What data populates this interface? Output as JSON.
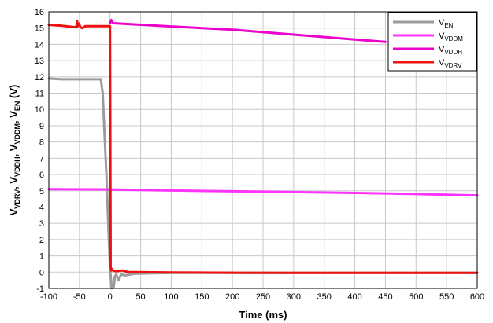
{
  "chart_data": {
    "type": "line",
    "xlabel": "Time (ms)",
    "ylabel": {
      "parts": [
        {
          "t": "V",
          "sub": false
        },
        {
          "t": "VDRV",
          "sub": true
        },
        {
          "t": ", V",
          "sub": false
        },
        {
          "t": "VDDH",
          "sub": true
        },
        {
          "t": ", V",
          "sub": false
        },
        {
          "t": "VDDM",
          "sub": true
        },
        {
          "t": ", V",
          "sub": false
        },
        {
          "t": "EN",
          "sub": true
        },
        {
          "t": " (V)",
          "sub": false
        }
      ]
    },
    "xlim": [
      -100,
      600
    ],
    "ylim": [
      -1,
      16
    ],
    "xticks": [
      -100,
      -50,
      0,
      50,
      100,
      150,
      200,
      250,
      300,
      350,
      400,
      450,
      500,
      550,
      600
    ],
    "yticks": [
      -1,
      0,
      1,
      2,
      3,
      4,
      5,
      6,
      7,
      8,
      9,
      10,
      11,
      12,
      13,
      14,
      15,
      16
    ],
    "grid": true,
    "legend_position": "top-right",
    "series": [
      {
        "name": "EN",
        "prefix": "V",
        "color": "#9b9b9b",
        "x": [
          -100,
          -80,
          -50,
          -20,
          -15,
          -12,
          -9,
          -6,
          -3,
          0,
          3,
          6,
          8,
          10,
          14,
          18,
          25,
          40,
          100,
          300,
          600
        ],
        "y": [
          11.9,
          11.85,
          11.85,
          11.85,
          11.85,
          11.0,
          8.5,
          6.0,
          3.0,
          0.2,
          -1.0,
          -0.9,
          -0.25,
          -0.15,
          -0.5,
          -0.15,
          -0.2,
          -0.1,
          -0.05,
          -0.05,
          -0.05
        ]
      },
      {
        "name": "VDDM",
        "prefix": "V",
        "color": "#ff33ff",
        "x": [
          -100,
          0,
          100,
          200,
          300,
          400,
          500,
          600
        ],
        "y": [
          5.1,
          5.08,
          5.02,
          4.97,
          4.92,
          4.87,
          4.8,
          4.72
        ]
      },
      {
        "name": "VDDH",
        "prefix": "V",
        "color": "#ee00cc",
        "x": [
          0,
          2,
          5,
          100,
          200,
          300,
          400,
          450
        ],
        "y": [
          15.3,
          15.5,
          15.3,
          15.1,
          14.9,
          14.6,
          14.3,
          14.15
        ]
      },
      {
        "name": "VDRV",
        "prefix": "V",
        "color": "#ee1111",
        "x": [
          -100,
          -80,
          -55,
          -54,
          -53,
          -52,
          -50,
          -48,
          -45,
          -40,
          -20,
          -5,
          0,
          1,
          2,
          3,
          5,
          10,
          20,
          30,
          40,
          100,
          200,
          300,
          400,
          500,
          600
        ],
        "y": [
          15.2,
          15.15,
          15.05,
          15.45,
          15.1,
          15.3,
          15.2,
          15.05,
          15.0,
          15.12,
          15.12,
          15.12,
          15.12,
          0.3,
          0.1,
          0.2,
          0.1,
          0.05,
          0.1,
          0.0,
          0.0,
          -0.02,
          -0.04,
          -0.05,
          -0.05,
          -0.05,
          -0.05
        ]
      }
    ]
  }
}
